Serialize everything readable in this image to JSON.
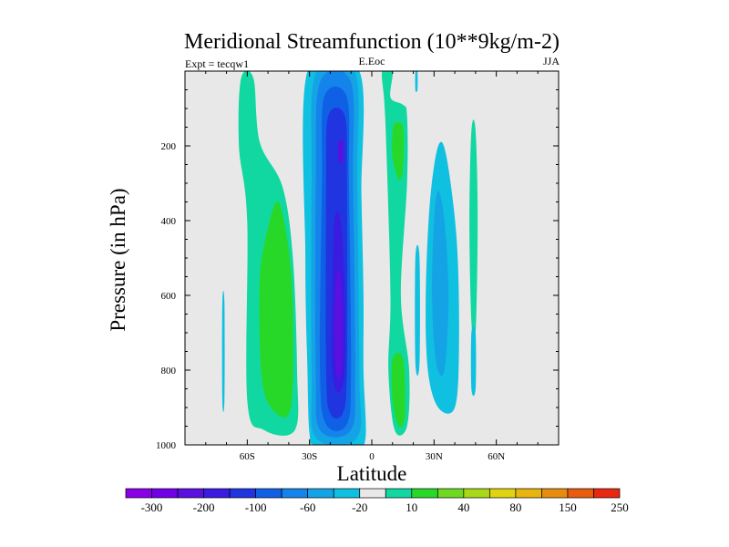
{
  "chart_data": {
    "type": "contour",
    "title": "Meridional Streamfunction (10**9kg/m-2)",
    "left_label": "Expt = tecqw1",
    "center_label": "E.Eoc",
    "right_label": "JJA",
    "xlabel": "Latitude",
    "ylabel": "Pressure (in hPa)",
    "xlim": [
      -90,
      90
    ],
    "ylim": [
      1000,
      0
    ],
    "x_ticks": [
      {
        "value": -60,
        "label": "60S"
      },
      {
        "value": -30,
        "label": "30S"
      },
      {
        "value": 0,
        "label": "0"
      },
      {
        "value": 30,
        "label": "30N"
      },
      {
        "value": 60,
        "label": "60N"
      }
    ],
    "y_ticks": [
      {
        "value": 200,
        "label": "200"
      },
      {
        "value": 400,
        "label": "400"
      },
      {
        "value": 600,
        "label": "600"
      },
      {
        "value": 800,
        "label": "800"
      },
      {
        "value": 1000,
        "label": "1000"
      }
    ],
    "background_color": "#e8e8e8",
    "colorbar": {
      "colors": [
        "#8a00e6",
        "#7000e8",
        "#5a10e0",
        "#3a1ce0",
        "#2034e0",
        "#1060e6",
        "#1484ea",
        "#14a4e6",
        "#10c0e0",
        "#e8e8e8",
        "#10d8a0",
        "#28d828",
        "#70d820",
        "#a8d818",
        "#e0d410",
        "#e8b410",
        "#e88c10",
        "#e85c10",
        "#e82810"
      ],
      "labels": [
        {
          "index": 1,
          "text": "-300"
        },
        {
          "index": 3,
          "text": "-200"
        },
        {
          "index": 5,
          "text": "-100"
        },
        {
          "index": 7,
          "text": "-60"
        },
        {
          "index": 9,
          "text": "-20"
        },
        {
          "index": 11,
          "text": "10"
        },
        {
          "index": 13,
          "text": "40"
        },
        {
          "index": 15,
          "text": "80"
        },
        {
          "index": 17,
          "text": "150"
        },
        {
          "index": 19,
          "text": "250"
        }
      ]
    },
    "features": [
      {
        "name": "sh-positive-cell",
        "color": "#10d8a0",
        "points": [
          [
            -63,
            20
          ],
          [
            -57,
            20
          ],
          [
            -54,
            190
          ],
          [
            -43,
            310
          ],
          [
            -38,
            500
          ],
          [
            -36,
            800
          ],
          [
            -37,
            960
          ],
          [
            -52,
            960
          ],
          [
            -60,
            880
          ],
          [
            -60,
            400
          ],
          [
            -64,
            200
          ]
        ]
      },
      {
        "name": "sh-positive-core",
        "color": "#28d828",
        "points": [
          [
            -45,
            350
          ],
          [
            -40,
            480
          ],
          [
            -38,
            650
          ],
          [
            -39,
            900
          ],
          [
            -47,
            910
          ],
          [
            -53,
            820
          ],
          [
            -54,
            560
          ],
          [
            -50,
            420
          ]
        ]
      },
      {
        "name": "sh-thin-strip",
        "color": "#10c0e0",
        "points": [
          [
            -72,
            620
          ],
          [
            -71,
            620
          ],
          [
            -71,
            880
          ],
          [
            -72,
            880
          ]
        ]
      },
      {
        "name": "negative-cell-20",
        "color": "#10c0e0",
        "points": [
          [
            -31,
            0
          ],
          [
            -6,
            0
          ],
          [
            -5,
            330
          ],
          [
            -4,
            600
          ],
          [
            -4,
            800
          ],
          [
            -3,
            980
          ],
          [
            -8,
            1000
          ],
          [
            -27,
            1000
          ],
          [
            -30,
            970
          ],
          [
            -31,
            800
          ],
          [
            -32,
            500
          ]
        ]
      },
      {
        "name": "negative-cell-40",
        "color": "#14a4e6",
        "points": [
          [
            -27,
            5
          ],
          [
            -8,
            5
          ],
          [
            -7,
            300
          ],
          [
            -6,
            800
          ],
          [
            -7,
            980
          ],
          [
            -27,
            980
          ],
          [
            -29,
            800
          ],
          [
            -29,
            300
          ]
        ]
      },
      {
        "name": "negative-cell-60",
        "color": "#1484ea",
        "points": [
          [
            -25,
            30
          ],
          [
            -10,
            30
          ],
          [
            -9,
            300
          ],
          [
            -8,
            800
          ],
          [
            -10,
            960
          ],
          [
            -25,
            960
          ],
          [
            -27,
            800
          ],
          [
            -27,
            300
          ]
        ]
      },
      {
        "name": "negative-cell-80",
        "color": "#1060e6",
        "points": [
          [
            -23,
            70
          ],
          [
            -12,
            70
          ],
          [
            -11,
            300
          ],
          [
            -10,
            800
          ],
          [
            -12,
            945
          ],
          [
            -22,
            945
          ],
          [
            -25,
            800
          ],
          [
            -24,
            300
          ]
        ]
      },
      {
        "name": "negative-cell-100",
        "color": "#2034e0",
        "points": [
          [
            -21,
            120
          ],
          [
            -13,
            120
          ],
          [
            -12,
            300
          ],
          [
            -12,
            800
          ],
          [
            -14,
            915
          ],
          [
            -20,
            915
          ],
          [
            -22,
            800
          ],
          [
            -22,
            300
          ]
        ]
      },
      {
        "name": "negative-cell-150",
        "color": "#3a1ce0",
        "points": [
          [
            -18,
            400
          ],
          [
            -15,
            400
          ],
          [
            -13,
            600
          ],
          [
            -13,
            800
          ],
          [
            -16,
            860
          ],
          [
            -19,
            800
          ],
          [
            -19,
            600
          ]
        ]
      },
      {
        "name": "negative-cell-min",
        "color": "#5a10e0",
        "points": [
          [
            -17,
            550
          ],
          [
            -15,
            550
          ],
          [
            -14,
            700
          ],
          [
            -15,
            810
          ],
          [
            -17,
            810
          ],
          [
            -18,
            700
          ]
        ]
      },
      {
        "name": "negative-upper-min",
        "color": "#5a10e0",
        "points": [
          [
            -16,
            190
          ],
          [
            -14,
            190
          ],
          [
            -14,
            240
          ],
          [
            -16,
            240
          ]
        ]
      },
      {
        "name": "nh-positive-cell",
        "color": "#10d8a0",
        "points": [
          [
            5,
            0
          ],
          [
            10,
            0
          ],
          [
            9,
            70
          ],
          [
            15,
            90
          ],
          [
            17,
            120
          ],
          [
            17,
            300
          ],
          [
            14,
            600
          ],
          [
            18,
            800
          ],
          [
            17,
            950
          ],
          [
            11,
            960
          ],
          [
            8,
            800
          ],
          [
            9,
            600
          ],
          [
            7,
            200
          ],
          [
            6,
            80
          ]
        ]
      },
      {
        "name": "nh-positive-core-upper",
        "color": "#28d828",
        "points": [
          [
            11,
            140
          ],
          [
            15,
            150
          ],
          [
            15,
            260
          ],
          [
            13,
            290
          ],
          [
            10,
            230
          ],
          [
            10,
            170
          ]
        ]
      },
      {
        "name": "nh-positive-core-lower",
        "color": "#28d828",
        "points": [
          [
            10,
            770
          ],
          [
            15,
            770
          ],
          [
            16,
            920
          ],
          [
            13,
            950
          ],
          [
            10,
            880
          ]
        ]
      },
      {
        "name": "nh-thin-strip-top",
        "color": "#10c0e0",
        "points": [
          [
            21,
            0
          ],
          [
            22,
            0
          ],
          [
            22,
            50
          ],
          [
            21,
            50
          ]
        ]
      },
      {
        "name": "nh-thin-strip",
        "color": "#10c0e0",
        "points": [
          [
            21,
            500
          ],
          [
            23,
            500
          ],
          [
            23,
            780
          ],
          [
            21,
            780
          ]
        ]
      },
      {
        "name": "nh-negative-cell",
        "color": "#10c0e0",
        "points": [
          [
            32,
            200
          ],
          [
            36,
            230
          ],
          [
            41,
            460
          ],
          [
            42,
            740
          ],
          [
            40,
            900
          ],
          [
            32,
            900
          ],
          [
            27,
            800
          ],
          [
            26,
            600
          ],
          [
            28,
            350
          ]
        ]
      },
      {
        "name": "nh-negative-core",
        "color": "#14a4e6",
        "points": [
          [
            32,
            320
          ],
          [
            35,
            400
          ],
          [
            37,
            600
          ],
          [
            35,
            800
          ],
          [
            31,
            780
          ],
          [
            29,
            600
          ],
          [
            30,
            400
          ]
        ]
      },
      {
        "name": "nh-positive-strip",
        "color": "#10d8a0",
        "points": [
          [
            48,
            160
          ],
          [
            50,
            160
          ],
          [
            51,
            400
          ],
          [
            50,
            700
          ],
          [
            48,
            670
          ],
          [
            47,
            400
          ]
        ]
      },
      {
        "name": "nh-negative-strip",
        "color": "#10c0e0",
        "points": [
          [
            48,
            700
          ],
          [
            50,
            700
          ],
          [
            50,
            850
          ],
          [
            48,
            850
          ]
        ]
      }
    ]
  }
}
